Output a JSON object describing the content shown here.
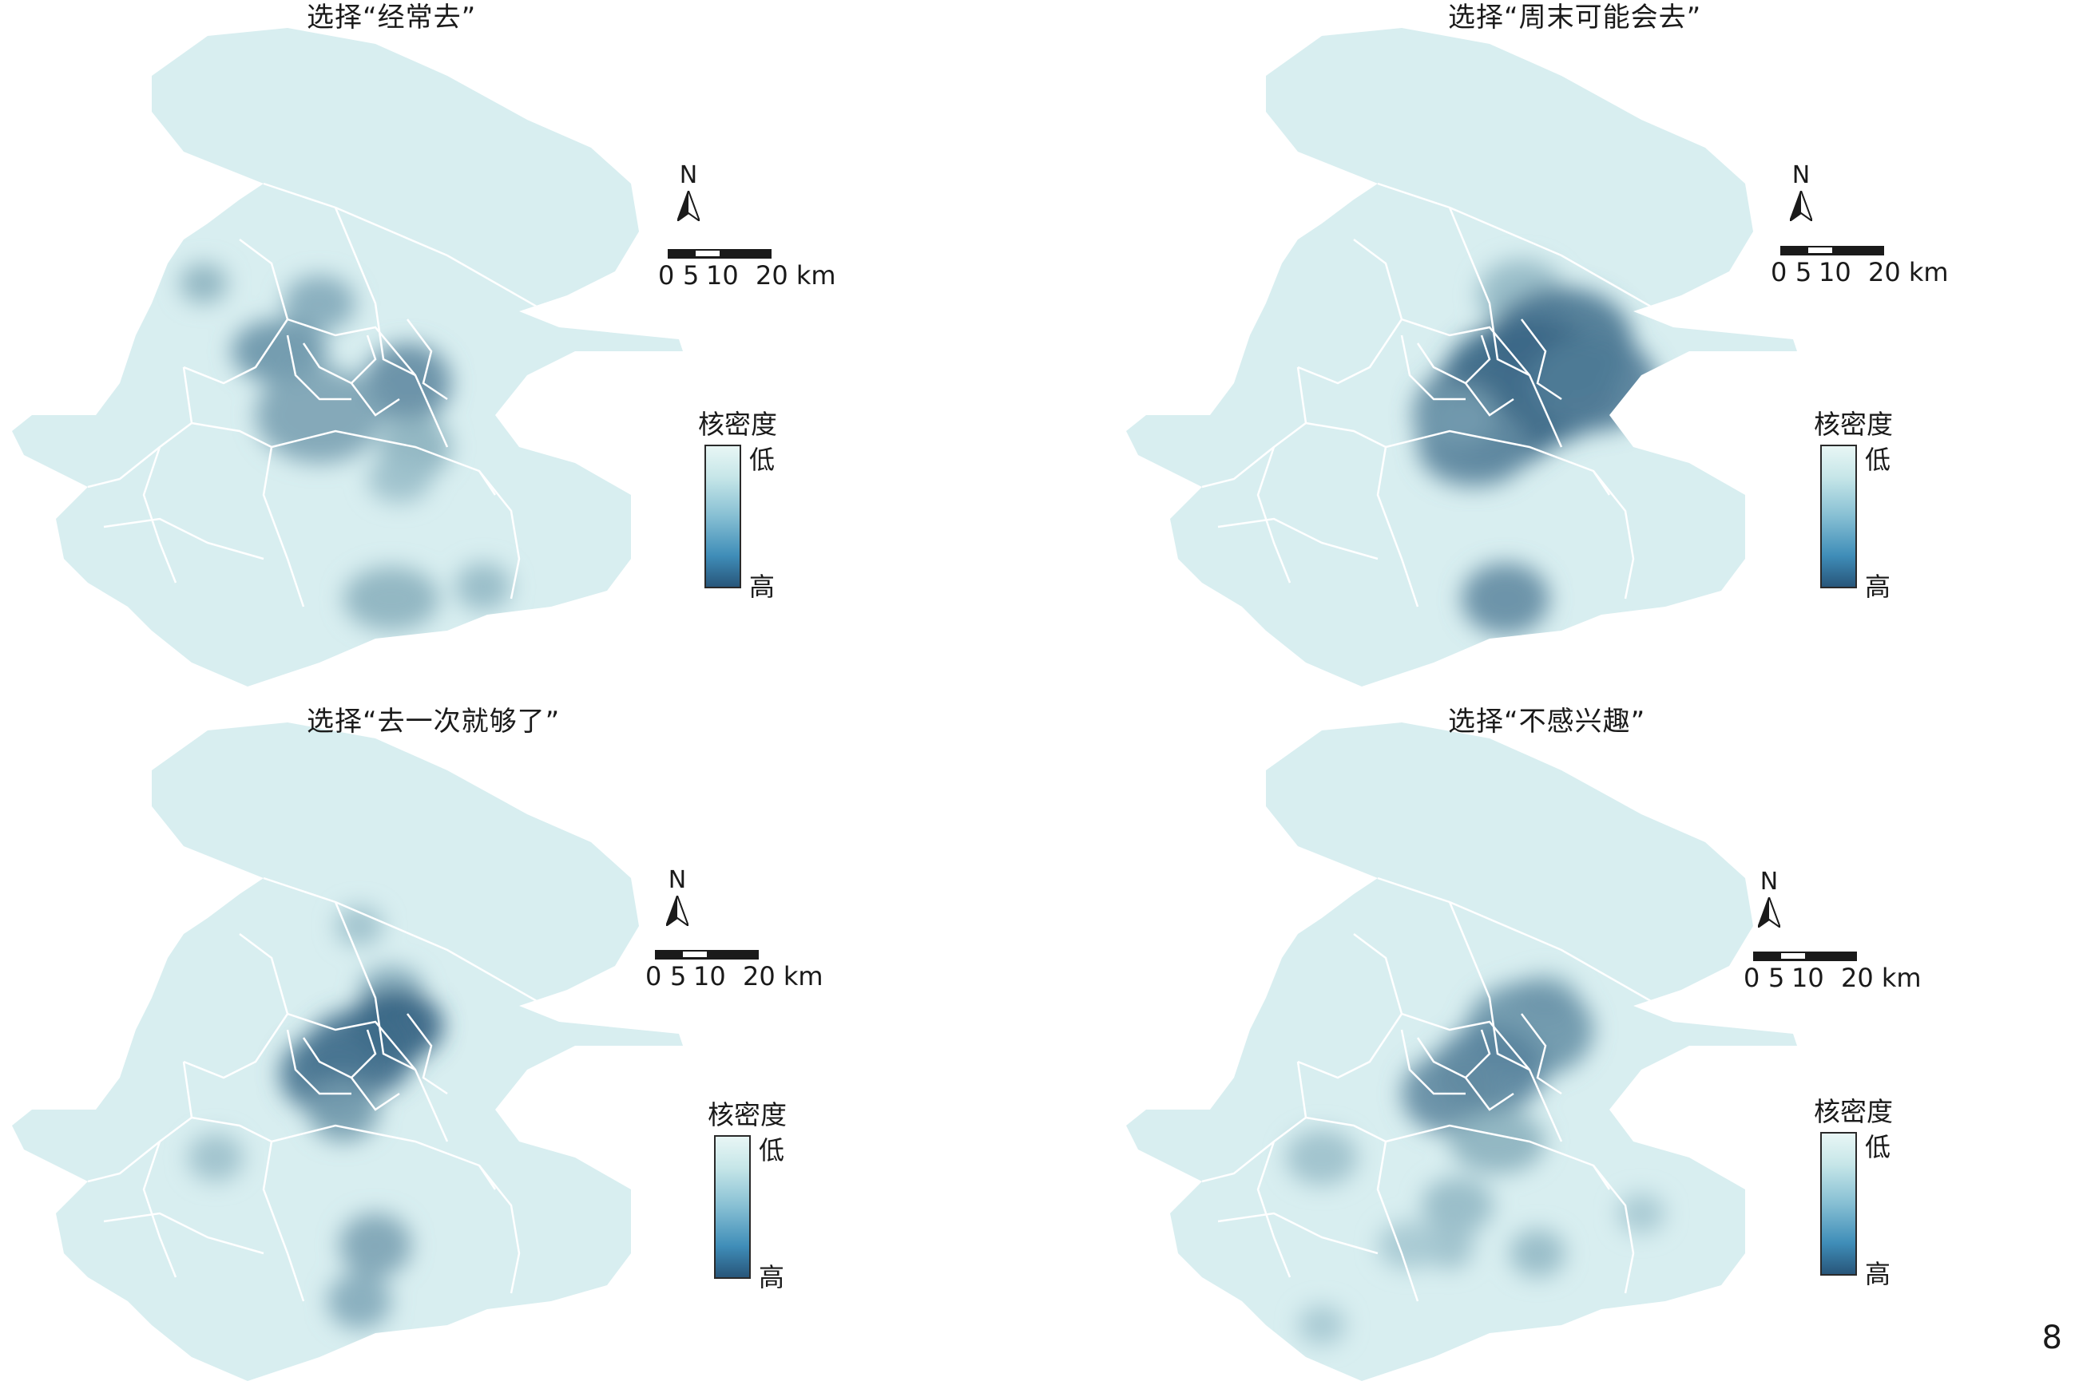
{
  "page_number": "8",
  "legend": {
    "title": "核密度",
    "low": "低",
    "high": "高",
    "ramp_colors": [
      "#e8f6f5",
      "#c6e6e8",
      "#86bfd3",
      "#3f8db8",
      "#28567a"
    ]
  },
  "north_label": "N",
  "scale": {
    "ticks": [
      "0",
      "5",
      "10",
      "20 km"
    ]
  },
  "colors": {
    "land": "#d8eef0",
    "district_border": "#ffffff",
    "density_low": "#c6e6e8",
    "density_high": "#1f4f74"
  },
  "panels": [
    {
      "id": "often",
      "title": "选择“经常去”"
    },
    {
      "id": "weekend",
      "title": "选择“周末可能会去”"
    },
    {
      "id": "once",
      "title": "选择“去一次就够了”"
    },
    {
      "id": "not",
      "title": "选择“不感兴趣”"
    }
  ]
}
